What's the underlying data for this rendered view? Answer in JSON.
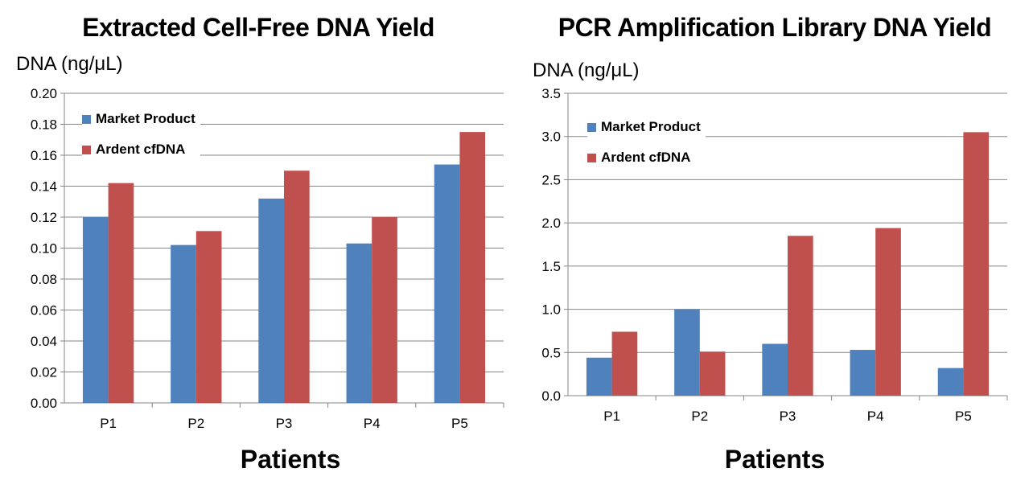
{
  "charts": [
    {
      "title": "Extracted Cell-Free DNA Yield",
      "ylabel": "DNA (ng/μL)",
      "xlabel": "Patients",
      "legend": [
        "Market Product",
        "Ardent cfDNA"
      ]
    },
    {
      "title": "PCR Amplification Library DNA Yield",
      "ylabel": "DNA (ng/μL)",
      "xlabel": "Patients",
      "legend": [
        "Market Product",
        "Ardent cfDNA"
      ]
    }
  ],
  "chart_data": [
    {
      "type": "bar",
      "title": "Extracted Cell-Free DNA Yield",
      "ylabel": "DNA (ng/μL)",
      "xlabel": "Patients",
      "categories": [
        "P1",
        "P2",
        "P3",
        "P4",
        "P5"
      ],
      "series": [
        {
          "name": "Market Product",
          "color": "#4F81BD",
          "values": [
            0.12,
            0.102,
            0.132,
            0.103,
            0.154
          ]
        },
        {
          "name": "Ardent cfDNA",
          "color": "#C0504D",
          "values": [
            0.142,
            0.111,
            0.15,
            0.12,
            0.175
          ]
        }
      ],
      "ylim": [
        0,
        0.2
      ],
      "yticks": [
        "0.00",
        "0.02",
        "0.04",
        "0.06",
        "0.08",
        "0.10",
        "0.12",
        "0.14",
        "0.16",
        "0.18",
        "0.20"
      ],
      "grid": true,
      "legend_position": "top-left"
    },
    {
      "type": "bar",
      "title": "PCR Amplification Library DNA Yield",
      "ylabel": "DNA (ng/μL)",
      "xlabel": "Patients",
      "categories": [
        "P1",
        "P2",
        "P3",
        "P4",
        "P5"
      ],
      "series": [
        {
          "name": "Market Product",
          "color": "#4F81BD",
          "values": [
            0.44,
            1.0,
            0.6,
            0.53,
            0.32
          ]
        },
        {
          "name": "Ardent cfDNA",
          "color": "#C0504D",
          "values": [
            0.74,
            0.51,
            1.85,
            1.94,
            3.05
          ]
        }
      ],
      "ylim": [
        0,
        3.5
      ],
      "yticks": [
        "0.0",
        "0.5",
        "1.0",
        "1.5",
        "2.0",
        "2.5",
        "3.0",
        "3.5"
      ],
      "grid": true,
      "legend_position": "top-left"
    }
  ]
}
